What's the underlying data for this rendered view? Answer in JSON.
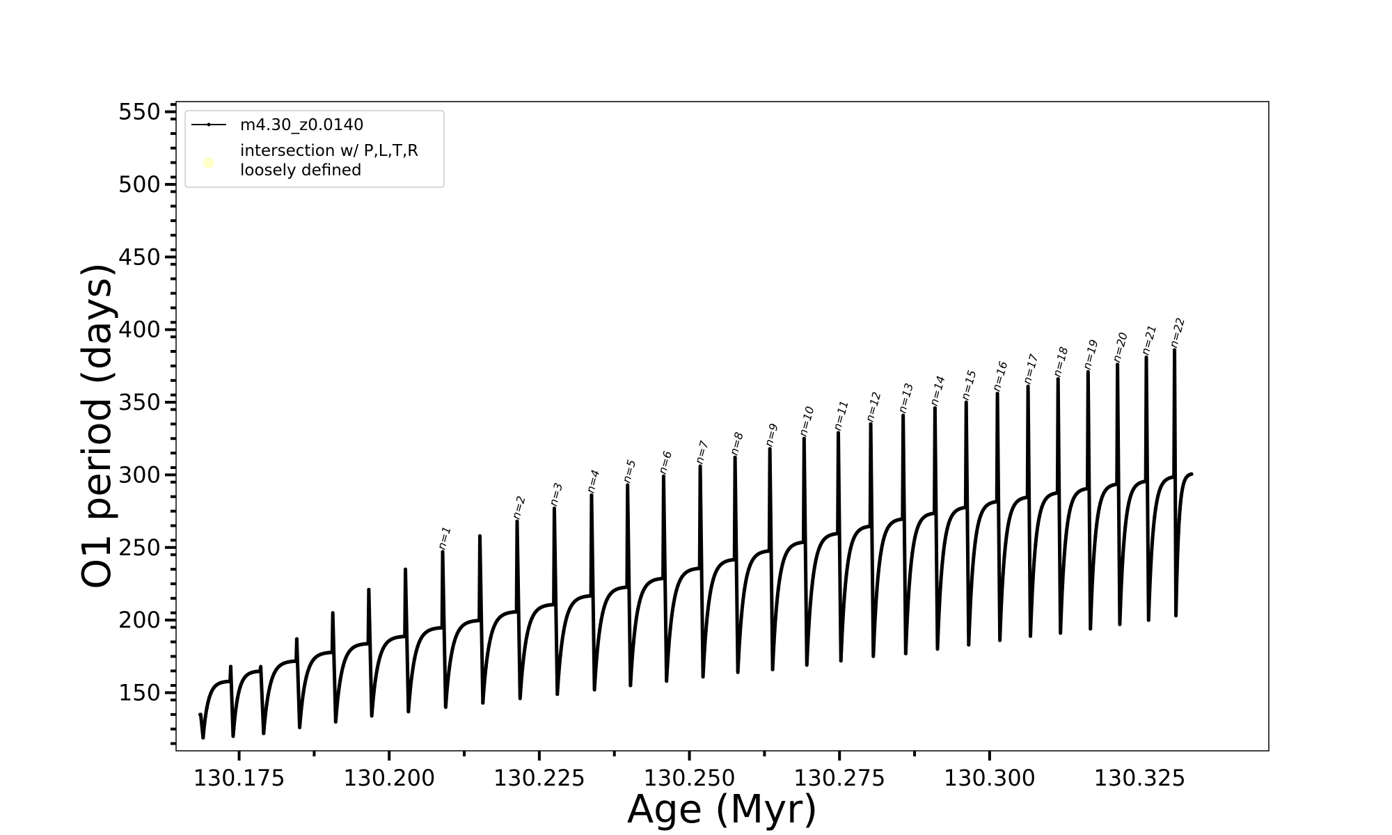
{
  "chart_data": {
    "type": "line",
    "xlabel": "Age (Myr)",
    "ylabel": "O1 period (days)",
    "xlim": [
      130.1645,
      130.3465
    ],
    "ylim": [
      110,
      557
    ],
    "x_ticks": [
      "130.175",
      "130.200",
      "130.225",
      "130.250",
      "130.275",
      "130.300",
      "130.325"
    ],
    "y_ticks": [
      "150",
      "200",
      "250",
      "300",
      "350",
      "400",
      "450",
      "500",
      "550"
    ],
    "legend": {
      "placement": "upper-left",
      "entries": [
        {
          "label": "m4.30_z0.0140",
          "marker": "line-dot",
          "color": "#000000"
        },
        {
          "label_line1": "intersection w/ P,L,T,R",
          "label_line2": "loosely defined",
          "marker": "circle",
          "color": "#ffffc0"
        }
      ]
    },
    "series": [
      {
        "name": "m4.30_z0.0140",
        "color": "#000000",
        "cycles": [
          {
            "start": 130.1686,
            "end": 130.1736,
            "spike": 135,
            "min": 119,
            "plateau": 158
          },
          {
            "start": 130.1736,
            "end": 130.1786,
            "spike": 168,
            "min": 120,
            "plateau": 165
          },
          {
            "start": 130.1786,
            "end": 130.1846,
            "spike": 168,
            "min": 122,
            "plateau": 172
          },
          {
            "start": 130.1846,
            "end": 130.1906,
            "spike": 187,
            "min": 126,
            "plateau": 178
          },
          {
            "start": 130.1906,
            "end": 130.1966,
            "spike": 205,
            "min": 130,
            "plateau": 184
          },
          {
            "start": 130.1966,
            "end": 130.2027,
            "spike": 221,
            "min": 134,
            "plateau": 189
          },
          {
            "start": 130.2027,
            "end": 130.2089,
            "spike": 235,
            "min": 137,
            "plateau": 195
          },
          {
            "start": 130.2089,
            "end": 130.2151,
            "spike": 247,
            "min": 140,
            "plateau": 200
          },
          {
            "start": 130.2151,
            "end": 130.2213,
            "spike": 258,
            "min": 143,
            "plateau": 206
          },
          {
            "start": 130.2213,
            "end": 130.2275,
            "spike": 268,
            "min": 146,
            "plateau": 211
          },
          {
            "start": 130.2275,
            "end": 130.2337,
            "spike": 277,
            "min": 149,
            "plateau": 217
          },
          {
            "start": 130.2337,
            "end": 130.2397,
            "spike": 286,
            "min": 152,
            "plateau": 223
          },
          {
            "start": 130.2397,
            "end": 130.2457,
            "spike": 293,
            "min": 155,
            "plateau": 229
          },
          {
            "start": 130.2457,
            "end": 130.2518,
            "spike": 299,
            "min": 158,
            "plateau": 236
          },
          {
            "start": 130.2518,
            "end": 130.2576,
            "spike": 306,
            "min": 161,
            "plateau": 242
          },
          {
            "start": 130.2576,
            "end": 130.2634,
            "spike": 312,
            "min": 164,
            "plateau": 248
          },
          {
            "start": 130.2634,
            "end": 130.2691,
            "spike": 318,
            "min": 166,
            "plateau": 254
          },
          {
            "start": 130.2691,
            "end": 130.2748,
            "spike": 325,
            "min": 169,
            "plateau": 260
          },
          {
            "start": 130.2748,
            "end": 130.2802,
            "spike": 329,
            "min": 172,
            "plateau": 265
          },
          {
            "start": 130.2802,
            "end": 130.2856,
            "spike": 335,
            "min": 175,
            "plateau": 270
          },
          {
            "start": 130.2856,
            "end": 130.2909,
            "spike": 341,
            "min": 177,
            "plateau": 274
          },
          {
            "start": 130.2909,
            "end": 130.2961,
            "spike": 346,
            "min": 180,
            "plateau": 278
          },
          {
            "start": 130.2961,
            "end": 130.3013,
            "spike": 350,
            "min": 183,
            "plateau": 282
          },
          {
            "start": 130.3013,
            "end": 130.3064,
            "spike": 356,
            "min": 186,
            "plateau": 285
          },
          {
            "start": 130.3064,
            "end": 130.3114,
            "spike": 361,
            "min": 189,
            "plateau": 288
          },
          {
            "start": 130.3114,
            "end": 130.3164,
            "spike": 366,
            "min": 191,
            "plateau": 291
          },
          {
            "start": 130.3164,
            "end": 130.3213,
            "spike": 371,
            "min": 194,
            "plateau": 294
          },
          {
            "start": 130.3213,
            "end": 130.3261,
            "spike": 376,
            "min": 197,
            "plateau": 296
          },
          {
            "start": 130.3261,
            "end": 130.3308,
            "spike": 381,
            "min": 200,
            "plateau": 299
          },
          {
            "start": 130.3308,
            "end": 130.3337,
            "spike": 386,
            "min": 203,
            "plateau": 301
          }
        ]
      }
    ],
    "annotations": [
      {
        "text": "n=1",
        "x": 130.2089,
        "y": 247
      },
      {
        "text": "n=2",
        "x": 130.2213,
        "y": 268
      },
      {
        "text": "n=3",
        "x": 130.2275,
        "y": 277
      },
      {
        "text": "n=4",
        "x": 130.2337,
        "y": 286
      },
      {
        "text": "n=5",
        "x": 130.2397,
        "y": 293
      },
      {
        "text": "n=6",
        "x": 130.2457,
        "y": 299
      },
      {
        "text": "n=7",
        "x": 130.2518,
        "y": 306
      },
      {
        "text": "n=8",
        "x": 130.2576,
        "y": 312
      },
      {
        "text": "n=9",
        "x": 130.2634,
        "y": 318
      },
      {
        "text": "n=10",
        "x": 130.2691,
        "y": 325
      },
      {
        "text": "n=11",
        "x": 130.2748,
        "y": 329
      },
      {
        "text": "n=12",
        "x": 130.2802,
        "y": 335
      },
      {
        "text": "n=13",
        "x": 130.2856,
        "y": 341
      },
      {
        "text": "n=14",
        "x": 130.2909,
        "y": 346
      },
      {
        "text": "n=15",
        "x": 130.2961,
        "y": 350
      },
      {
        "text": "n=16",
        "x": 130.3013,
        "y": 356
      },
      {
        "text": "n=17",
        "x": 130.3064,
        "y": 361
      },
      {
        "text": "n=18",
        "x": 130.3114,
        "y": 366
      },
      {
        "text": "n=19",
        "x": 130.3164,
        "y": 371
      },
      {
        "text": "n=20",
        "x": 130.3213,
        "y": 376
      },
      {
        "text": "n=21",
        "x": 130.3261,
        "y": 381
      },
      {
        "text": "n=22",
        "x": 130.3308,
        "y": 386
      }
    ]
  }
}
